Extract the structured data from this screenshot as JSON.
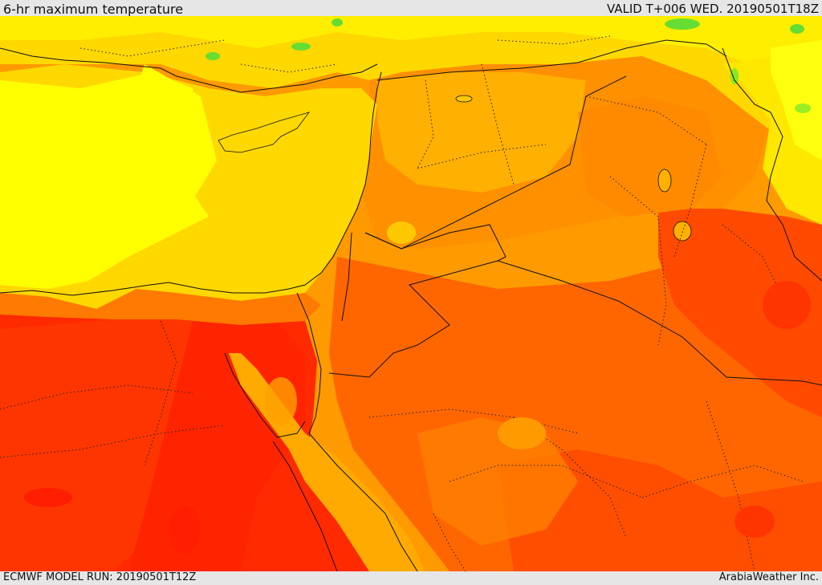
{
  "header": {
    "title": "6-hr maximum temperature",
    "valid": "VALID T+006 WED. 20190501T18Z"
  },
  "footer": {
    "model_run": "ECMWF MODEL RUN: 20190501T12Z",
    "credit": "ArabiaWeather Inc."
  },
  "map": {
    "layer": "temperature-field",
    "colors": {
      "green": "#66dd33",
      "light_green": "#bff000",
      "yellow": "#ffff00",
      "gold": "#ffd800",
      "amber": "#ffb400",
      "orange": "#ff9000",
      "dark_orange": "#ff6600",
      "red_orange": "#ff4200",
      "red": "#ff2a00"
    }
  }
}
